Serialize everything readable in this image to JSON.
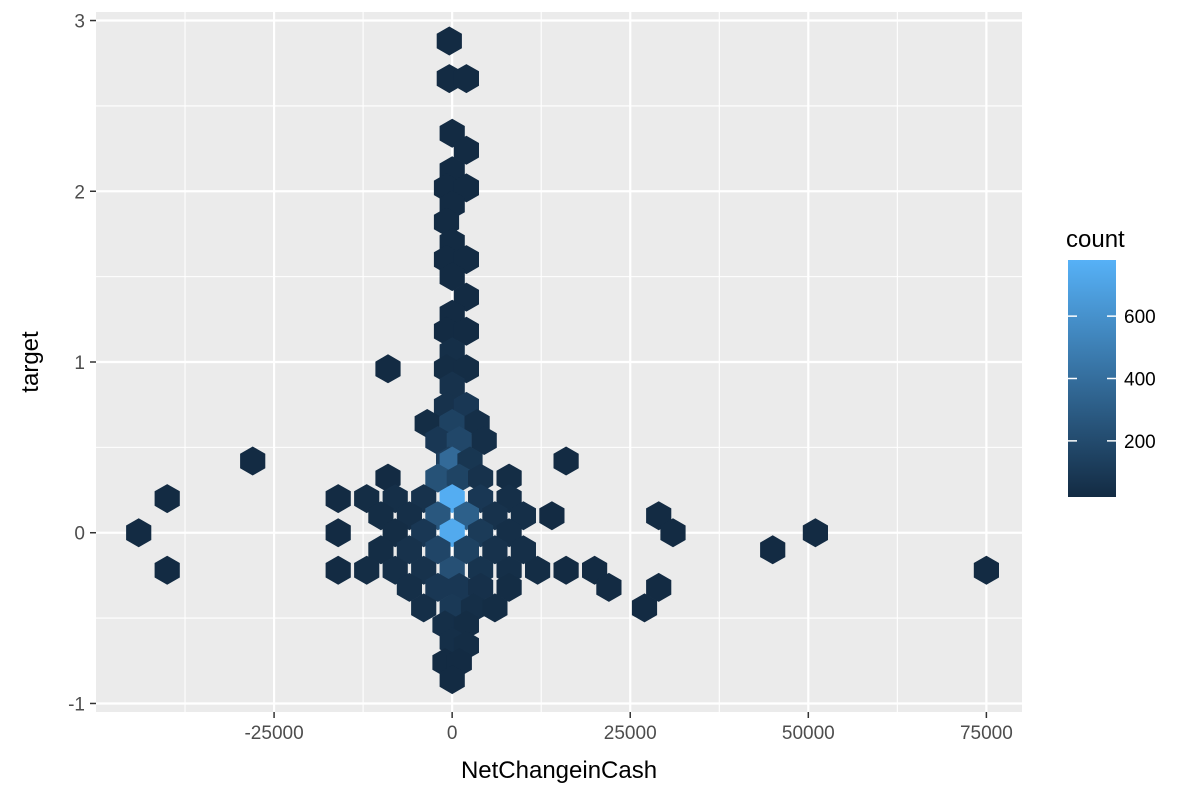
{
  "chart_data": {
    "type": "heatmap",
    "subtype": "hexbin",
    "title": "",
    "xlabel": "NetChangeinCash",
    "ylabel": "target",
    "xlim": [
      -50000,
      80000
    ],
    "ylim": [
      -1.05,
      3.05
    ],
    "x_ticks": [
      -25000,
      0,
      25000,
      50000,
      75000
    ],
    "x_tick_labels": [
      "-25000",
      "0",
      "25000",
      "50000",
      "75000"
    ],
    "y_ticks": [
      -1,
      0,
      1,
      2,
      3
    ],
    "y_tick_labels": [
      "-1",
      "0",
      "1",
      "2",
      "3"
    ],
    "grid": true,
    "legend": {
      "title": "count",
      "position": "right",
      "range": [
        20,
        780
      ],
      "breaks": [
        200,
        400,
        600
      ],
      "break_labels": [
        "200",
        "400",
        "600"
      ],
      "low_color": "#132B43",
      "high_color": "#56B1F7"
    },
    "colors": {
      "panel_background": "#EBEBEB",
      "grid_line": "#FFFFFF",
      "axis_text": "#4D4D4D",
      "axis_tick": "#333333"
    },
    "bins": [
      {
        "x": -400,
        "y": 2.88,
        "count": 20
      },
      {
        "x": -400,
        "y": 2.66,
        "count": 20
      },
      {
        "x": 2000,
        "y": 2.66,
        "count": 20
      },
      {
        "x": 0,
        "y": 2.34,
        "count": 20
      },
      {
        "x": 2000,
        "y": 2.24,
        "count": 20
      },
      {
        "x": 0,
        "y": 2.12,
        "count": 20
      },
      {
        "x": -800,
        "y": 2.02,
        "count": 20
      },
      {
        "x": 2000,
        "y": 2.02,
        "count": 20
      },
      {
        "x": 0,
        "y": 1.92,
        "count": 20
      },
      {
        "x": -800,
        "y": 1.82,
        "count": 20
      },
      {
        "x": 0,
        "y": 1.7,
        "count": 20
      },
      {
        "x": -800,
        "y": 1.6,
        "count": 20
      },
      {
        "x": 2000,
        "y": 1.6,
        "count": 20
      },
      {
        "x": 0,
        "y": 1.5,
        "count": 20
      },
      {
        "x": 2000,
        "y": 1.38,
        "count": 20
      },
      {
        "x": 0,
        "y": 1.28,
        "count": 20
      },
      {
        "x": -800,
        "y": 1.18,
        "count": 20
      },
      {
        "x": 2000,
        "y": 1.18,
        "count": 20
      },
      {
        "x": 0,
        "y": 1.06,
        "count": 40
      },
      {
        "x": -9000,
        "y": 0.96,
        "count": 20
      },
      {
        "x": -800,
        "y": 0.96,
        "count": 30
      },
      {
        "x": 2000,
        "y": 0.96,
        "count": 30
      },
      {
        "x": 0,
        "y": 0.86,
        "count": 60
      },
      {
        "x": -800,
        "y": 0.74,
        "count": 60
      },
      {
        "x": 2000,
        "y": 0.74,
        "count": 90
      },
      {
        "x": -3500,
        "y": 0.64,
        "count": 30
      },
      {
        "x": 0,
        "y": 0.64,
        "count": 150
      },
      {
        "x": 3500,
        "y": 0.64,
        "count": 40
      },
      {
        "x": -2000,
        "y": 0.54,
        "count": 90
      },
      {
        "x": 1000,
        "y": 0.54,
        "count": 180
      },
      {
        "x": 4500,
        "y": 0.54,
        "count": 40
      },
      {
        "x": -28000,
        "y": 0.42,
        "count": 20
      },
      {
        "x": -500,
        "y": 0.42,
        "count": 130
      },
      {
        "x": 0,
        "y": 0.42,
        "count": 380
      },
      {
        "x": 2500,
        "y": 0.42,
        "count": 80
      },
      {
        "x": 16000,
        "y": 0.42,
        "count": 20
      },
      {
        "x": -9000,
        "y": 0.32,
        "count": 20
      },
      {
        "x": -2000,
        "y": 0.32,
        "count": 240
      },
      {
        "x": 1000,
        "y": 0.32,
        "count": 160
      },
      {
        "x": 4000,
        "y": 0.32,
        "count": 60
      },
      {
        "x": 8000,
        "y": 0.32,
        "count": 30
      },
      {
        "x": -40000,
        "y": 0.2,
        "count": 20
      },
      {
        "x": -16000,
        "y": 0.2,
        "count": 20
      },
      {
        "x": -12000,
        "y": 0.2,
        "count": 30
      },
      {
        "x": -8000,
        "y": 0.2,
        "count": 40
      },
      {
        "x": -4000,
        "y": 0.2,
        "count": 60
      },
      {
        "x": 0,
        "y": 0.2,
        "count": 760
      },
      {
        "x": 4000,
        "y": 0.2,
        "count": 90
      },
      {
        "x": 8000,
        "y": 0.2,
        "count": 40
      },
      {
        "x": -10000,
        "y": 0.1,
        "count": 30
      },
      {
        "x": -6000,
        "y": 0.1,
        "count": 40
      },
      {
        "x": -2000,
        "y": 0.1,
        "count": 270
      },
      {
        "x": 2000,
        "y": 0.1,
        "count": 320
      },
      {
        "x": 6000,
        "y": 0.1,
        "count": 60
      },
      {
        "x": 10000,
        "y": 0.1,
        "count": 40
      },
      {
        "x": 14000,
        "y": 0.1,
        "count": 20
      },
      {
        "x": 29000,
        "y": 0.1,
        "count": 20
      },
      {
        "x": -44000,
        "y": 0.0,
        "count": 20
      },
      {
        "x": -16000,
        "y": 0.0,
        "count": 20
      },
      {
        "x": -8000,
        "y": 0.0,
        "count": 30
      },
      {
        "x": -4000,
        "y": 0.0,
        "count": 90
      },
      {
        "x": 0,
        "y": 0.0,
        "count": 740
      },
      {
        "x": 4000,
        "y": 0.0,
        "count": 110
      },
      {
        "x": 8000,
        "y": 0.0,
        "count": 40
      },
      {
        "x": 31000,
        "y": 0.0,
        "count": 20
      },
      {
        "x": 51000,
        "y": 0.0,
        "count": 20
      },
      {
        "x": -10000,
        "y": -0.1,
        "count": 30
      },
      {
        "x": -6000,
        "y": -0.1,
        "count": 60
      },
      {
        "x": -2000,
        "y": -0.1,
        "count": 170
      },
      {
        "x": 2000,
        "y": -0.1,
        "count": 150
      },
      {
        "x": 6000,
        "y": -0.1,
        "count": 60
      },
      {
        "x": 10000,
        "y": -0.1,
        "count": 40
      },
      {
        "x": 45000,
        "y": -0.1,
        "count": 20
      },
      {
        "x": -40000,
        "y": -0.22,
        "count": 20
      },
      {
        "x": -16000,
        "y": -0.22,
        "count": 20
      },
      {
        "x": -12000,
        "y": -0.22,
        "count": 30
      },
      {
        "x": -8000,
        "y": -0.22,
        "count": 40
      },
      {
        "x": -4000,
        "y": -0.22,
        "count": 60
      },
      {
        "x": 0,
        "y": -0.22,
        "count": 230
      },
      {
        "x": 4000,
        "y": -0.22,
        "count": 70
      },
      {
        "x": 8000,
        "y": -0.22,
        "count": 40
      },
      {
        "x": 12000,
        "y": -0.22,
        "count": 30
      },
      {
        "x": 16000,
        "y": -0.22,
        "count": 20
      },
      {
        "x": 20000,
        "y": -0.22,
        "count": 20
      },
      {
        "x": 75000,
        "y": -0.22,
        "count": 20
      },
      {
        "x": -6000,
        "y": -0.32,
        "count": 40
      },
      {
        "x": -2000,
        "y": -0.32,
        "count": 90
      },
      {
        "x": 1000,
        "y": -0.32,
        "count": 90
      },
      {
        "x": 4000,
        "y": -0.32,
        "count": 50
      },
      {
        "x": 8000,
        "y": -0.32,
        "count": 30
      },
      {
        "x": 22000,
        "y": -0.32,
        "count": 20
      },
      {
        "x": 29000,
        "y": -0.32,
        "count": 20
      },
      {
        "x": -4000,
        "y": -0.44,
        "count": 40
      },
      {
        "x": 0,
        "y": -0.44,
        "count": 100
      },
      {
        "x": 3000,
        "y": -0.44,
        "count": 40
      },
      {
        "x": 6000,
        "y": -0.44,
        "count": 30
      },
      {
        "x": 27000,
        "y": -0.44,
        "count": 20
      },
      {
        "x": -1000,
        "y": -0.54,
        "count": 40
      },
      {
        "x": 2000,
        "y": -0.54,
        "count": 30
      },
      {
        "x": 0,
        "y": -0.64,
        "count": 40
      },
      {
        "x": 2000,
        "y": -0.66,
        "count": 30
      },
      {
        "x": -1000,
        "y": -0.76,
        "count": 20
      },
      {
        "x": 1000,
        "y": -0.76,
        "count": 20
      },
      {
        "x": 0,
        "y": -0.86,
        "count": 20
      }
    ]
  }
}
